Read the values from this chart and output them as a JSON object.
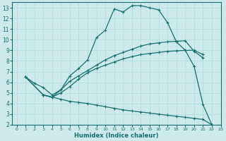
{
  "xlabel": "Humidex (Indice chaleur)",
  "ylabel": "",
  "bg_color": "#cceaea",
  "line_color": "#1a7070",
  "grid_color": "#aadddd",
  "xlim": [
    -0.5,
    23
  ],
  "ylim": [
    2,
    13.5
  ],
  "xticks": [
    0,
    1,
    2,
    3,
    4,
    5,
    6,
    7,
    8,
    9,
    10,
    11,
    12,
    13,
    14,
    15,
    16,
    17,
    18,
    19,
    20,
    21,
    22,
    23
  ],
  "yticks": [
    2,
    3,
    4,
    5,
    6,
    7,
    8,
    9,
    10,
    11,
    12,
    13
  ],
  "lines": [
    {
      "x": [
        1,
        2,
        3,
        4,
        5,
        6,
        7,
        8,
        9,
        10,
        11,
        12,
        13,
        14,
        15,
        16,
        17,
        18,
        19,
        20,
        21,
        22
      ],
      "y": [
        6.5,
        5.9,
        5.5,
        4.8,
        5.3,
        6.6,
        7.3,
        8.1,
        10.2,
        10.9,
        12.9,
        12.6,
        13.2,
        13.2,
        13.0,
        12.8,
        11.6,
        9.8,
        9.0,
        7.5,
        3.9,
        2.0
      ]
    },
    {
      "x": [
        1,
        3,
        4,
        5,
        6,
        7,
        8,
        9,
        10,
        11,
        12,
        13,
        14,
        15,
        16,
        17,
        18,
        19,
        20,
        21
      ],
      "y": [
        6.5,
        4.8,
        4.6,
        5.3,
        6.1,
        6.6,
        7.1,
        7.6,
        8.1,
        8.5,
        8.8,
        9.1,
        9.4,
        9.6,
        9.7,
        9.8,
        9.85,
        9.9,
        8.9,
        8.3
      ]
    },
    {
      "x": [
        1,
        3,
        4,
        5,
        6,
        7,
        8,
        9,
        10,
        11,
        12,
        13,
        14,
        15,
        16,
        17,
        18,
        19,
        20,
        21
      ],
      "y": [
        6.5,
        4.8,
        4.6,
        5.0,
        5.6,
        6.3,
        6.9,
        7.3,
        7.6,
        7.9,
        8.2,
        8.4,
        8.6,
        8.7,
        8.8,
        8.9,
        8.95,
        9.0,
        9.0,
        8.6
      ]
    },
    {
      "x": [
        3,
        4,
        5,
        6,
        7,
        8,
        9,
        10,
        11,
        12,
        13,
        14,
        15,
        16,
        17,
        18,
        19,
        20,
        21,
        22
      ],
      "y": [
        4.8,
        4.6,
        4.4,
        4.2,
        4.1,
        4.0,
        3.85,
        3.7,
        3.55,
        3.4,
        3.3,
        3.2,
        3.1,
        3.0,
        2.9,
        2.8,
        2.7,
        2.6,
        2.5,
        2.0
      ]
    }
  ]
}
